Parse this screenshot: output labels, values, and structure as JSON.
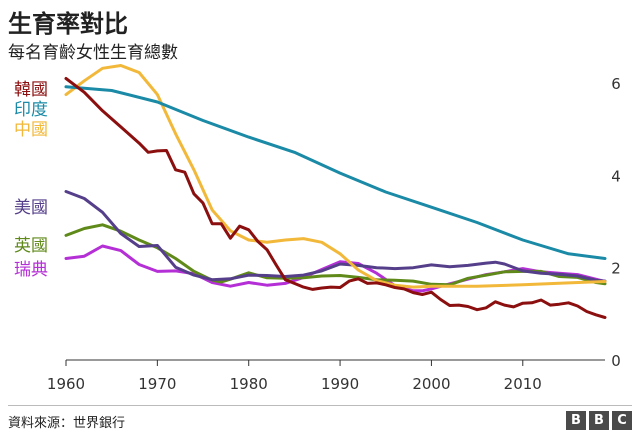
{
  "title": "生育率對比",
  "subtitle": "每名育齡女性生育總數",
  "source": "資料來源：世界銀行",
  "logo": [
    "B",
    "B",
    "C"
  ],
  "chart_data": {
    "type": "line",
    "title": "生育率對比",
    "subtitle": "每名育齡女性生育總數",
    "xlim": [
      1960,
      2019
    ],
    "ylim": [
      0,
      6.5
    ],
    "x_ticks": [
      1960,
      1970,
      1980,
      1990,
      2000,
      2010
    ],
    "y_ticks": [
      0,
      2,
      4,
      6
    ],
    "grid": false,
    "legend_placement": "left",
    "series": [
      {
        "name": "韓國",
        "color": "#8b0f0f",
        "points": [
          [
            1960,
            6.1
          ],
          [
            1962,
            5.8
          ],
          [
            1964,
            5.4
          ],
          [
            1966,
            5.05
          ],
          [
            1968,
            4.7
          ],
          [
            1969,
            4.5
          ],
          [
            1970,
            4.53
          ],
          [
            1971,
            4.54
          ],
          [
            1972,
            4.12
          ],
          [
            1973,
            4.07
          ],
          [
            1974,
            3.6
          ],
          [
            1975,
            3.4
          ],
          [
            1976,
            2.95
          ],
          [
            1977,
            2.95
          ],
          [
            1978,
            2.64
          ],
          [
            1979,
            2.9
          ],
          [
            1980,
            2.82
          ],
          [
            1981,
            2.57
          ],
          [
            1982,
            2.39
          ],
          [
            1983,
            2.06
          ],
          [
            1984,
            1.74
          ],
          [
            1985,
            1.66
          ],
          [
            1986,
            1.58
          ],
          [
            1987,
            1.53
          ],
          [
            1988,
            1.56
          ],
          [
            1989,
            1.58
          ],
          [
            1990,
            1.57
          ],
          [
            1991,
            1.71
          ],
          [
            1992,
            1.76
          ],
          [
            1993,
            1.66
          ],
          [
            1994,
            1.67
          ],
          [
            1995,
            1.63
          ],
          [
            1996,
            1.57
          ],
          [
            1997,
            1.54
          ],
          [
            1998,
            1.46
          ],
          [
            1999,
            1.42
          ],
          [
            2000,
            1.47
          ],
          [
            2001,
            1.31
          ],
          [
            2002,
            1.18
          ],
          [
            2003,
            1.19
          ],
          [
            2004,
            1.16
          ],
          [
            2005,
            1.09
          ],
          [
            2006,
            1.13
          ],
          [
            2007,
            1.26
          ],
          [
            2008,
            1.19
          ],
          [
            2009,
            1.15
          ],
          [
            2010,
            1.23
          ],
          [
            2011,
            1.24
          ],
          [
            2012,
            1.3
          ],
          [
            2013,
            1.19
          ],
          [
            2014,
            1.21
          ],
          [
            2015,
            1.24
          ],
          [
            2016,
            1.17
          ],
          [
            2017,
            1.05
          ],
          [
            2018,
            0.98
          ],
          [
            2019,
            0.92
          ]
        ]
      },
      {
        "name": "印度",
        "color": "#1a8aa6",
        "points": [
          [
            1960,
            5.92
          ],
          [
            1965,
            5.84
          ],
          [
            1970,
            5.59
          ],
          [
            1975,
            5.19
          ],
          [
            1980,
            4.83
          ],
          [
            1985,
            4.5
          ],
          [
            1990,
            4.05
          ],
          [
            1995,
            3.64
          ],
          [
            2000,
            3.31
          ],
          [
            2005,
            2.98
          ],
          [
            2010,
            2.6
          ],
          [
            2015,
            2.3
          ],
          [
            2019,
            2.2
          ]
        ]
      },
      {
        "name": "中國",
        "color": "#f2b83a",
        "points": [
          [
            1960,
            5.75
          ],
          [
            1962,
            6.05
          ],
          [
            1964,
            6.32
          ],
          [
            1966,
            6.38
          ],
          [
            1968,
            6.23
          ],
          [
            1970,
            5.75
          ],
          [
            1972,
            4.9
          ],
          [
            1974,
            4.12
          ],
          [
            1976,
            3.25
          ],
          [
            1978,
            2.8
          ],
          [
            1980,
            2.6
          ],
          [
            1982,
            2.55
          ],
          [
            1984,
            2.6
          ],
          [
            1986,
            2.63
          ],
          [
            1988,
            2.55
          ],
          [
            1990,
            2.3
          ],
          [
            1992,
            1.95
          ],
          [
            1994,
            1.72
          ],
          [
            1996,
            1.62
          ],
          [
            1998,
            1.58
          ],
          [
            2000,
            1.6
          ],
          [
            2005,
            1.6
          ],
          [
            2010,
            1.63
          ],
          [
            2015,
            1.67
          ],
          [
            2019,
            1.7
          ]
        ]
      },
      {
        "name": "美國",
        "color": "#553f8a",
        "points": [
          [
            1960,
            3.65
          ],
          [
            1962,
            3.5
          ],
          [
            1964,
            3.2
          ],
          [
            1966,
            2.74
          ],
          [
            1968,
            2.46
          ],
          [
            1970,
            2.48
          ],
          [
            1972,
            2.01
          ],
          [
            1974,
            1.84
          ],
          [
            1976,
            1.74
          ],
          [
            1978,
            1.76
          ],
          [
            1980,
            1.84
          ],
          [
            1982,
            1.83
          ],
          [
            1984,
            1.81
          ],
          [
            1986,
            1.84
          ],
          [
            1988,
            1.93
          ],
          [
            1990,
            2.08
          ],
          [
            1992,
            2.05
          ],
          [
            1994,
            2.0
          ],
          [
            1996,
            1.98
          ],
          [
            1998,
            2.0
          ],
          [
            2000,
            2.06
          ],
          [
            2002,
            2.02
          ],
          [
            2004,
            2.05
          ],
          [
            2006,
            2.1
          ],
          [
            2007,
            2.12
          ],
          [
            2008,
            2.08
          ],
          [
            2010,
            1.93
          ],
          [
            2012,
            1.88
          ],
          [
            2014,
            1.86
          ],
          [
            2016,
            1.82
          ],
          [
            2018,
            1.73
          ],
          [
            2019,
            1.71
          ]
        ]
      },
      {
        "name": "英國",
        "color": "#5f8a1a",
        "points": [
          [
            1960,
            2.7
          ],
          [
            1962,
            2.85
          ],
          [
            1964,
            2.93
          ],
          [
            1966,
            2.79
          ],
          [
            1968,
            2.6
          ],
          [
            1970,
            2.43
          ],
          [
            1972,
            2.2
          ],
          [
            1974,
            1.92
          ],
          [
            1976,
            1.73
          ],
          [
            1977,
            1.69
          ],
          [
            1978,
            1.75
          ],
          [
            1980,
            1.89
          ],
          [
            1982,
            1.78
          ],
          [
            1984,
            1.77
          ],
          [
            1986,
            1.78
          ],
          [
            1988,
            1.82
          ],
          [
            1990,
            1.83
          ],
          [
            1992,
            1.79
          ],
          [
            1994,
            1.74
          ],
          [
            1996,
            1.73
          ],
          [
            1998,
            1.71
          ],
          [
            2000,
            1.64
          ],
          [
            2002,
            1.63
          ],
          [
            2004,
            1.77
          ],
          [
            2006,
            1.84
          ],
          [
            2008,
            1.91
          ],
          [
            2010,
            1.92
          ],
          [
            2012,
            1.92
          ],
          [
            2014,
            1.81
          ],
          [
            2016,
            1.79
          ],
          [
            2018,
            1.68
          ],
          [
            2019,
            1.65
          ]
        ]
      },
      {
        "name": "瑞典",
        "color": "#b52fd6",
        "points": [
          [
            1960,
            2.2
          ],
          [
            1962,
            2.25
          ],
          [
            1964,
            2.47
          ],
          [
            1966,
            2.37
          ],
          [
            1968,
            2.07
          ],
          [
            1970,
            1.92
          ],
          [
            1972,
            1.93
          ],
          [
            1974,
            1.87
          ],
          [
            1976,
            1.68
          ],
          [
            1978,
            1.6
          ],
          [
            1980,
            1.68
          ],
          [
            1982,
            1.62
          ],
          [
            1984,
            1.66
          ],
          [
            1986,
            1.79
          ],
          [
            1988,
            1.96
          ],
          [
            1990,
            2.13
          ],
          [
            1992,
            2.09
          ],
          [
            1994,
            1.88
          ],
          [
            1996,
            1.61
          ],
          [
            1998,
            1.5
          ],
          [
            1999,
            1.5
          ],
          [
            2000,
            1.54
          ],
          [
            2002,
            1.65
          ],
          [
            2004,
            1.75
          ],
          [
            2006,
            1.85
          ],
          [
            2008,
            1.91
          ],
          [
            2010,
            1.98
          ],
          [
            2012,
            1.91
          ],
          [
            2014,
            1.88
          ],
          [
            2016,
            1.85
          ],
          [
            2018,
            1.75
          ],
          [
            2019,
            1.7
          ]
        ]
      }
    ]
  }
}
